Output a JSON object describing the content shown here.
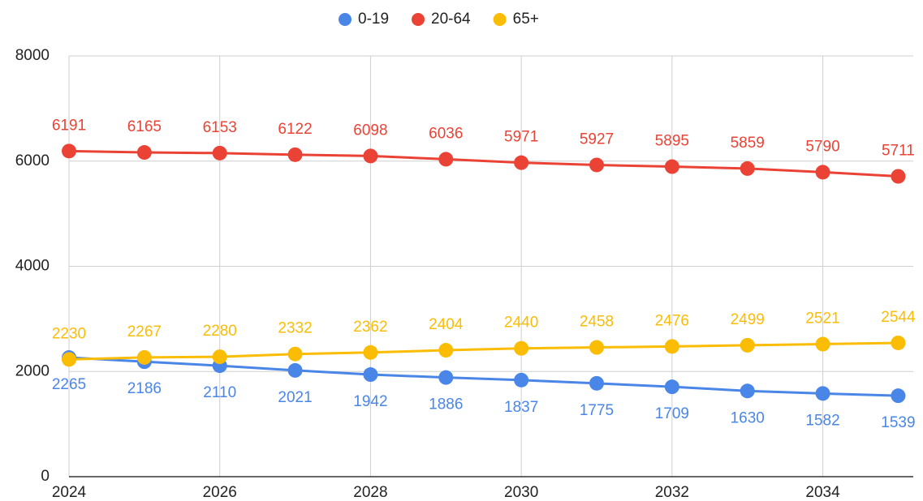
{
  "chart_data": {
    "type": "line",
    "x": [
      2024,
      2025,
      2026,
      2027,
      2028,
      2029,
      2030,
      2031,
      2032,
      2033,
      2034,
      2035
    ],
    "series": [
      {
        "name": "0-19",
        "color": "#4a86e8",
        "values": [
          2265,
          2186,
          2110,
          2021,
          1942,
          1886,
          1837,
          1775,
          1709,
          1630,
          1582,
          1539
        ]
      },
      {
        "name": "20-64",
        "color": "#ea4335",
        "values": [
          6191,
          6165,
          6153,
          6122,
          6098,
          6036,
          5971,
          5927,
          5895,
          5859,
          5790,
          5711
        ]
      },
      {
        "name": "65+",
        "color": "#fbbc04",
        "values": [
          2230,
          2267,
          2280,
          2332,
          2362,
          2404,
          2440,
          2458,
          2476,
          2499,
          2521,
          2544
        ]
      }
    ],
    "xlim": [
      2024,
      2035.2
    ],
    "xticks": [
      2024,
      2026,
      2028,
      2030,
      2032,
      2034
    ],
    "ylim": [
      0,
      8000
    ],
    "yticks": [
      0,
      2000,
      4000,
      6000,
      8000
    ],
    "grid": true,
    "legend": "top"
  }
}
